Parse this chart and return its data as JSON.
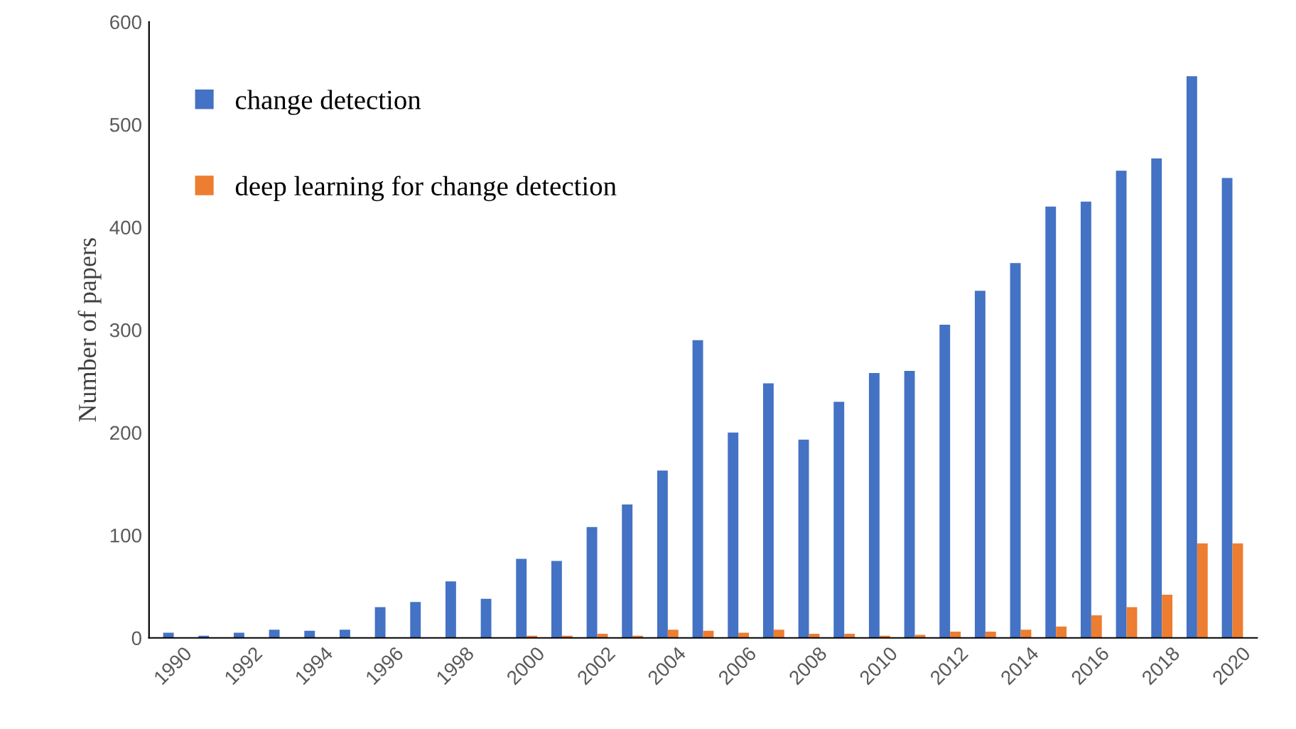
{
  "chart_data": {
    "type": "bar",
    "ylabel": "Number of papers",
    "categories": [
      "1990",
      null,
      "1992",
      null,
      "1994",
      null,
      "1996",
      null,
      "1998",
      null,
      "2000",
      null,
      "2002",
      null,
      "2004",
      null,
      "2006",
      null,
      "2008",
      null,
      "2010",
      null,
      "2012",
      null,
      "2014",
      null,
      "2016",
      null,
      "2018",
      null,
      "2020"
    ],
    "series": [
      {
        "name": "change detection",
        "color": "#4472c4",
        "values": [
          5,
          2,
          5,
          8,
          7,
          8,
          30,
          35,
          55,
          38,
          77,
          75,
          108,
          130,
          163,
          290,
          200,
          248,
          193,
          230,
          258,
          260,
          305,
          338,
          365,
          420,
          425,
          455,
          467,
          547,
          448
        ]
      },
      {
        "name": "deep learning for change detection",
        "color": "#ed7d31",
        "values": [
          0,
          0,
          0,
          0,
          0,
          0,
          0,
          0,
          0,
          0,
          2,
          2,
          4,
          2,
          8,
          7,
          5,
          8,
          4,
          4,
          2,
          3,
          6,
          6,
          8,
          11,
          22,
          30,
          42,
          92,
          92
        ]
      }
    ],
    "ylim": [
      0,
      600
    ],
    "yticks": [
      0,
      100,
      200,
      300,
      400,
      500,
      600
    ],
    "grid": false,
    "legend": "top left"
  }
}
